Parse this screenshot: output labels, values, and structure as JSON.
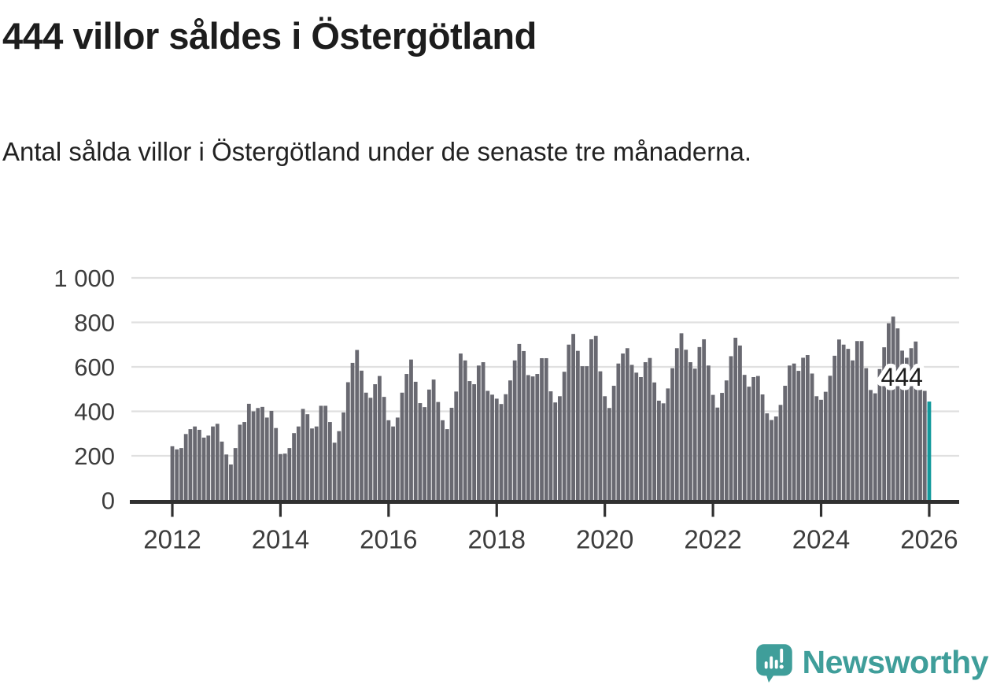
{
  "header": {
    "title": "444 villor såldes i Östergötland",
    "subtitle": "Antal sålda villor i Östergötland under de senaste tre månaderna."
  },
  "chart_data": {
    "type": "bar",
    "title": "444 villor såldes i Östergötland",
    "subtitle": "Antal sålda villor i Östergötland under de senaste tre månaderna.",
    "unit": "antal sålda villor (rullande 3 månader)",
    "frequency": "monthly",
    "x_start": "2012-01",
    "x_end": "2026-01",
    "ylim": [
      0,
      1000
    ],
    "grid": "horizontal",
    "y_tick_values": [
      0,
      200,
      400,
      600,
      800,
      1000
    ],
    "y_tick_labels": [
      "0",
      "200",
      "400",
      "600",
      "800",
      "1 000"
    ],
    "x_tick_years": [
      2012,
      2014,
      2016,
      2018,
      2020,
      2022,
      2024,
      2026
    ],
    "x_tick_labels": [
      "2012",
      "2014",
      "2016",
      "2018",
      "2020",
      "2022",
      "2024",
      "2026"
    ],
    "values": [
      243,
      229,
      235,
      298,
      320,
      332,
      317,
      282,
      291,
      332,
      344,
      264,
      206,
      161,
      235,
      340,
      352,
      434,
      400,
      415,
      420,
      372,
      402,
      325,
      208,
      210,
      235,
      302,
      332,
      411,
      387,
      323,
      332,
      425,
      425,
      352,
      259,
      311,
      395,
      531,
      618,
      676,
      583,
      484,
      461,
      522,
      559,
      465,
      360,
      332,
      372,
      484,
      568,
      633,
      533,
      437,
      419,
      498,
      543,
      442,
      360,
      320,
      416,
      489,
      660,
      629,
      536,
      522,
      606,
      621,
      492,
      475,
      457,
      433,
      477,
      539,
      629,
      703,
      671,
      563,
      557,
      568,
      639,
      639,
      490,
      440,
      468,
      578,
      700,
      748,
      672,
      603,
      603,
      724,
      739,
      580,
      468,
      415,
      515,
      615,
      660,
      684,
      609,
      574,
      554,
      621,
      640,
      530,
      448,
      436,
      503,
      594,
      684,
      751,
      677,
      621,
      592,
      689,
      724,
      606,
      474,
      417,
      483,
      539,
      648,
      731,
      696,
      564,
      511,
      554,
      559,
      476,
      391,
      361,
      377,
      429,
      515,
      606,
      615,
      582,
      641,
      653,
      570,
      468,
      452,
      488,
      560,
      650,
      723,
      700,
      681,
      629,
      716,
      716,
      594,
      496,
      481,
      590,
      688,
      796,
      826,
      773,
      673,
      641,
      684,
      714,
      560,
      492
    ],
    "highlight": {
      "x": "2026-01",
      "value": 444,
      "label": "444"
    },
    "colors": {
      "bar": "#696971",
      "highlight_bar": "#12999c",
      "gridline": "#e0e0e0",
      "axis": "#303030",
      "tick_label": "#3d3d3d",
      "annotation_text": "#1d1d1d",
      "annotation_halo": "#ffffff"
    }
  },
  "footer": {
    "brand": "Newsworthy",
    "brand_color": "#3f9e9a",
    "logo_icon": "speech-bubble-with-bar-chart-and-exclamation"
  }
}
